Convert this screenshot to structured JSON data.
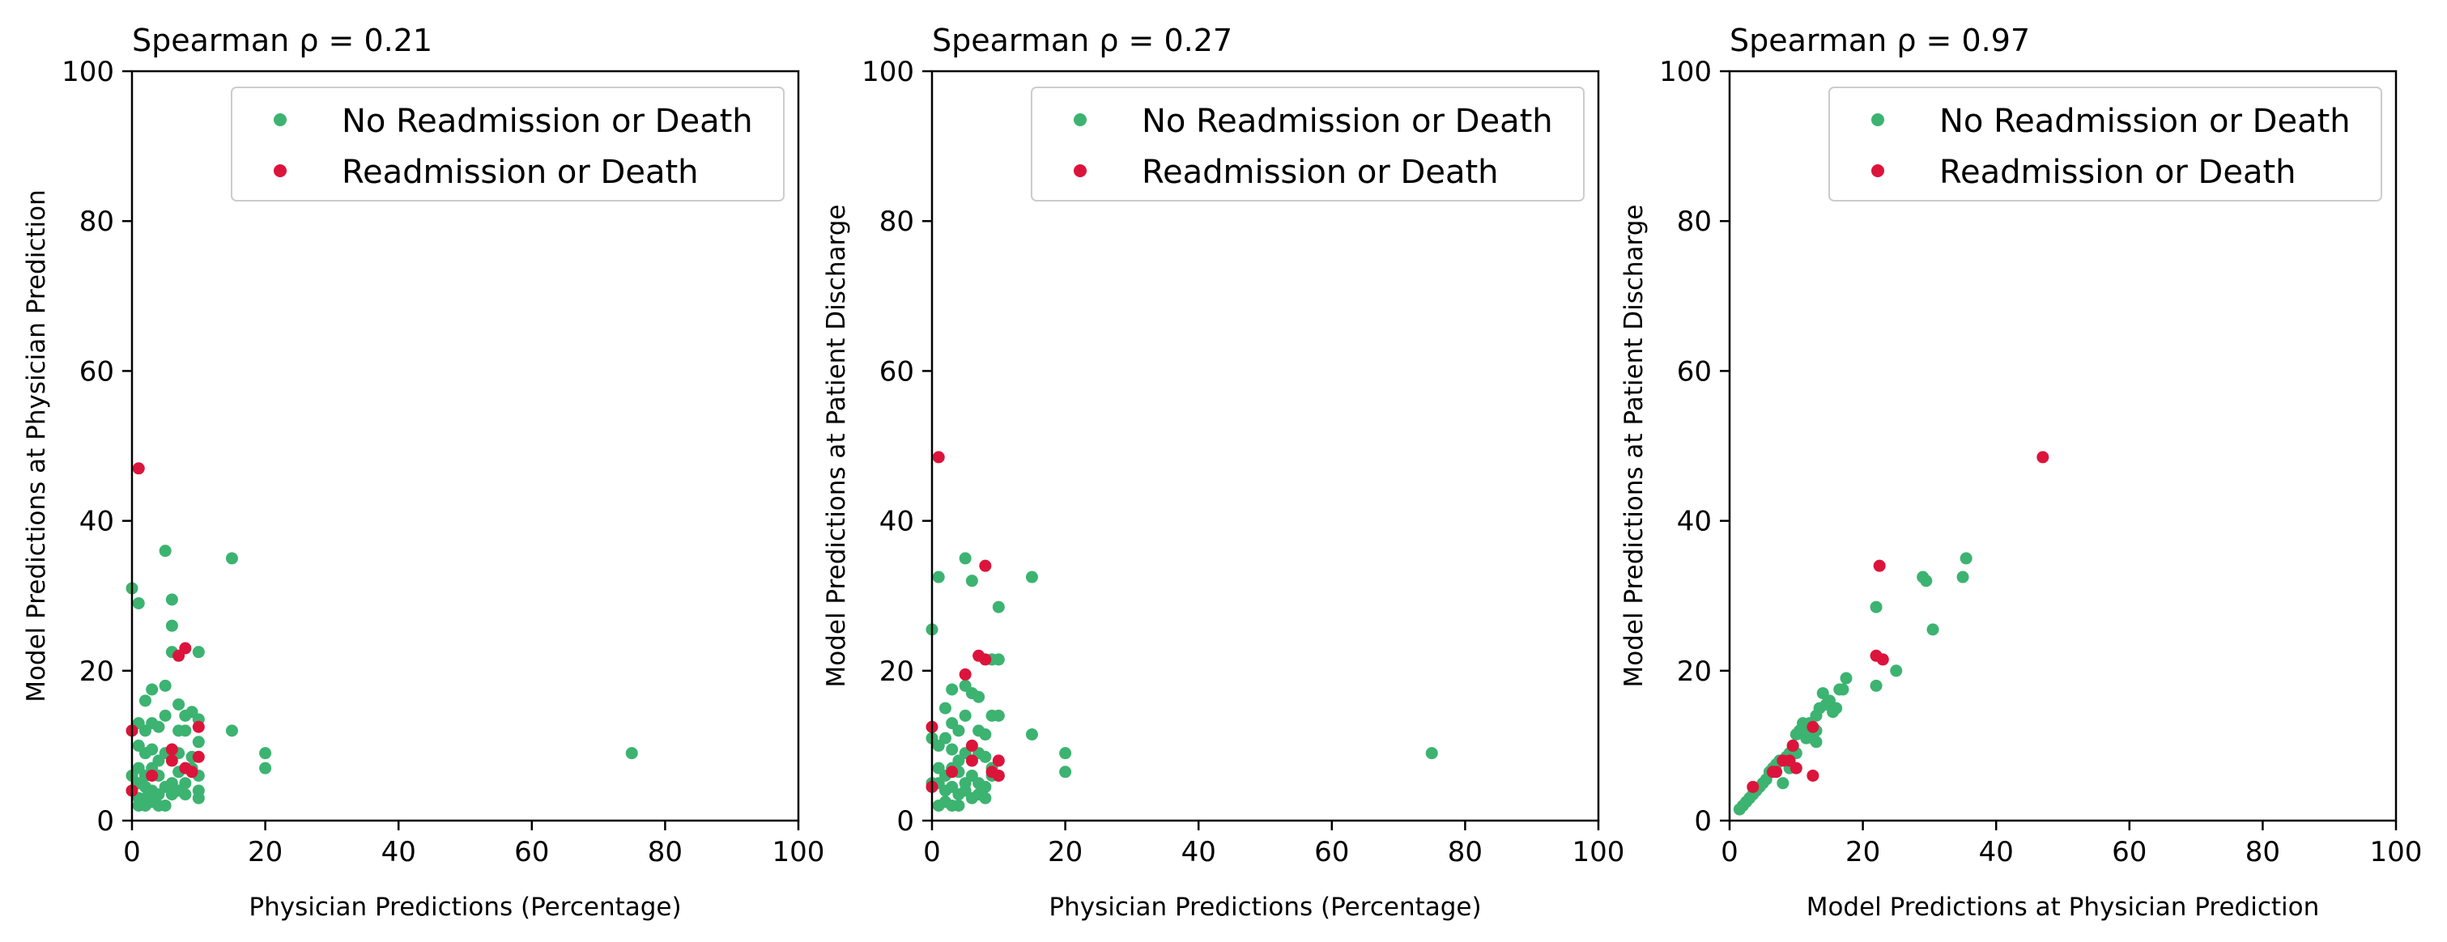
{
  "chart_data": [
    {
      "type": "scatter",
      "title": "Spearman ρ = 0.21",
      "xlabel": "Physician Predictions (Percentage)",
      "ylabel": "Model Predictions at Physician Prediction",
      "xlim": [
        0,
        100
      ],
      "ylim": [
        0,
        100
      ],
      "xticks": [
        0,
        20,
        40,
        60,
        80,
        100
      ],
      "yticks": [
        0,
        20,
        40,
        60,
        80,
        100
      ],
      "legend_position": "top-right",
      "series": [
        {
          "name": "No Readmission or Death",
          "color": "#3cb371",
          "points": [
            [
              0,
              31
            ],
            [
              1,
              29
            ],
            [
              5,
              36
            ],
            [
              6,
              29.5
            ],
            [
              6,
              26
            ],
            [
              6,
              22.5
            ],
            [
              10,
              22.5
            ],
            [
              15,
              35
            ],
            [
              15,
              12
            ],
            [
              20,
              9
            ],
            [
              20,
              7
            ],
            [
              75,
              9
            ],
            [
              2,
              16
            ],
            [
              3,
              17.5
            ],
            [
              5,
              18
            ],
            [
              7,
              15.5
            ],
            [
              8,
              14
            ],
            [
              9,
              14.5
            ],
            [
              10,
              13.5
            ],
            [
              1,
              13
            ],
            [
              2,
              12
            ],
            [
              3,
              13
            ],
            [
              4,
              12.5
            ],
            [
              5,
              14
            ],
            [
              7,
              12
            ],
            [
              8,
              12
            ],
            [
              10,
              10.5
            ],
            [
              1,
              10
            ],
            [
              2,
              9
            ],
            [
              3,
              9.5
            ],
            [
              4,
              8
            ],
            [
              5,
              9
            ],
            [
              7,
              9
            ],
            [
              9,
              8.5
            ],
            [
              10,
              6
            ],
            [
              1,
              7
            ],
            [
              2,
              6
            ],
            [
              3,
              7
            ],
            [
              4,
              6
            ],
            [
              6,
              5
            ],
            [
              7,
              6.5
            ],
            [
              8,
              5
            ],
            [
              9,
              7
            ],
            [
              10,
              4
            ],
            [
              1,
              5
            ],
            [
              2,
              4.5
            ],
            [
              3,
              4
            ],
            [
              4,
              3.5
            ],
            [
              5,
              4.5
            ],
            [
              6,
              3.5
            ],
            [
              7,
              4
            ],
            [
              8,
              3.5
            ],
            [
              10,
              3
            ],
            [
              1,
              3
            ],
            [
              2,
              2
            ],
            [
              3,
              2.5
            ],
            [
              4,
              2
            ],
            [
              5,
              2
            ],
            [
              1,
              2
            ],
            [
              2,
              3
            ],
            [
              3,
              3
            ],
            [
              0,
              6
            ]
          ]
        },
        {
          "name": "Readmission or Death",
          "color": "#dc143c",
          "points": [
            [
              1,
              47
            ],
            [
              8,
              23
            ],
            [
              7,
              22
            ],
            [
              10,
              12.5
            ],
            [
              6,
              9.5
            ],
            [
              10,
              8.5
            ],
            [
              6,
              8
            ],
            [
              8,
              7
            ],
            [
              9,
              6.5
            ],
            [
              3,
              6
            ],
            [
              0,
              12
            ],
            [
              0,
              4
            ]
          ]
        }
      ]
    },
    {
      "type": "scatter",
      "title": "Spearman ρ = 0.27",
      "xlabel": "Physician Predictions (Percentage)",
      "ylabel": "Model Predictions at Patient Discharge",
      "xlim": [
        0,
        100
      ],
      "ylim": [
        0,
        100
      ],
      "xticks": [
        0,
        20,
        40,
        60,
        80,
        100
      ],
      "yticks": [
        0,
        20,
        40,
        60,
        80,
        100
      ],
      "legend_position": "top-right",
      "series": [
        {
          "name": "No Readmission or Death",
          "color": "#3cb371",
          "points": [
            [
              0,
              25.5
            ],
            [
              1,
              32.5
            ],
            [
              5,
              35
            ],
            [
              6,
              32
            ],
            [
              10,
              28.5
            ],
            [
              15,
              32.5
            ],
            [
              15,
              11.5
            ],
            [
              20,
              9
            ],
            [
              20,
              6.5
            ],
            [
              75,
              9
            ],
            [
              3,
              17.5
            ],
            [
              5,
              18
            ],
            [
              6,
              17
            ],
            [
              7,
              16.5
            ],
            [
              9,
              21.5
            ],
            [
              10,
              21.5
            ],
            [
              10,
              14
            ],
            [
              9,
              14
            ],
            [
              2,
              15
            ],
            [
              3,
              13
            ],
            [
              4,
              12
            ],
            [
              5,
              14
            ],
            [
              7,
              12
            ],
            [
              8,
              11.5
            ],
            [
              1,
              10
            ],
            [
              2,
              11
            ],
            [
              3,
              9.5
            ],
            [
              4,
              8
            ],
            [
              5,
              9
            ],
            [
              6,
              8
            ],
            [
              7,
              9
            ],
            [
              8,
              8.5
            ],
            [
              9,
              7
            ],
            [
              10,
              6
            ],
            [
              1,
              7
            ],
            [
              2,
              6
            ],
            [
              3,
              7
            ],
            [
              4,
              6.5
            ],
            [
              5,
              5
            ],
            [
              6,
              6
            ],
            [
              7,
              5
            ],
            [
              8,
              4.5
            ],
            [
              9,
              6
            ],
            [
              1,
              5
            ],
            [
              2,
              4
            ],
            [
              3,
              4.5
            ],
            [
              4,
              3.5
            ],
            [
              5,
              4
            ],
            [
              6,
              3
            ],
            [
              7,
              3.5
            ],
            [
              8,
              3
            ],
            [
              1,
              2
            ],
            [
              2,
              2.5
            ],
            [
              3,
              2
            ],
            [
              4,
              2
            ],
            [
              0,
              5
            ],
            [
              0,
              11
            ]
          ]
        },
        {
          "name": "Readmission or Death",
          "color": "#dc143c",
          "points": [
            [
              1,
              48.5
            ],
            [
              8,
              34
            ],
            [
              7,
              22
            ],
            [
              8,
              21.5
            ],
            [
              5,
              19.5
            ],
            [
              6,
              10
            ],
            [
              6,
              8
            ],
            [
              10,
              8
            ],
            [
              9,
              6.5
            ],
            [
              10,
              6
            ],
            [
              3,
              6.5
            ],
            [
              0,
              12.5
            ],
            [
              0,
              4.5
            ]
          ]
        }
      ]
    },
    {
      "type": "scatter",
      "title": "Spearman ρ = 0.97",
      "xlabel": "Model Predictions at Physician Prediction",
      "ylabel": "Model Predictions at Patient Discharge",
      "xlim": [
        0,
        100
      ],
      "ylim": [
        0,
        100
      ],
      "xticks": [
        0,
        20,
        40,
        60,
        80,
        100
      ],
      "yticks": [
        0,
        20,
        40,
        60,
        80,
        100
      ],
      "legend_position": "top-right",
      "series": [
        {
          "name": "No Readmission or Death",
          "color": "#3cb371",
          "points": [
            [
              1.5,
              1.5
            ],
            [
              2,
              2
            ],
            [
              2.5,
              2.5
            ],
            [
              3,
              3
            ],
            [
              3.5,
              3.5
            ],
            [
              4,
              4
            ],
            [
              4.5,
              4.5
            ],
            [
              5,
              5
            ],
            [
              5.5,
              5.5
            ],
            [
              6,
              6.5
            ],
            [
              6.5,
              7
            ],
            [
              7,
              7.5
            ],
            [
              7.5,
              8
            ],
            [
              8,
              5
            ],
            [
              8.5,
              8.5
            ],
            [
              9,
              9
            ],
            [
              9.5,
              10
            ],
            [
              10,
              11.5
            ],
            [
              10.5,
              12
            ],
            [
              11,
              13
            ],
            [
              11.5,
              11
            ],
            [
              12,
              12.5
            ],
            [
              12.5,
              11
            ],
            [
              13,
              10.5
            ],
            [
              13,
              14
            ],
            [
              13.5,
              15
            ],
            [
              14,
              17
            ],
            [
              14.5,
              15.5
            ],
            [
              15,
              16
            ],
            [
              15.5,
              14.5
            ],
            [
              16,
              15
            ],
            [
              16.5,
              17.5
            ],
            [
              17,
              17.5
            ],
            [
              17.5,
              19
            ],
            [
              22,
              18
            ],
            [
              22,
              28.5
            ],
            [
              25,
              20
            ],
            [
              29,
              32.5
            ],
            [
              29.5,
              32
            ],
            [
              30.5,
              25.5
            ],
            [
              35,
              32.5
            ],
            [
              35.5,
              35
            ],
            [
              9,
              7
            ],
            [
              10,
              9
            ],
            [
              11.5,
              12
            ],
            [
              12,
              13
            ],
            [
              13,
              12
            ]
          ]
        },
        {
          "name": "Readmission or Death",
          "color": "#dc143c",
          "points": [
            [
              47,
              48.5
            ],
            [
              22.5,
              34
            ],
            [
              22,
              22
            ],
            [
              23,
              21.5
            ],
            [
              12.5,
              12.5
            ],
            [
              9.5,
              10
            ],
            [
              8,
              8
            ],
            [
              9,
              8
            ],
            [
              7,
              6.5
            ],
            [
              12.5,
              6
            ],
            [
              3.5,
              4.5
            ],
            [
              10,
              7
            ],
            [
              6.5,
              6.5
            ]
          ]
        }
      ]
    }
  ]
}
